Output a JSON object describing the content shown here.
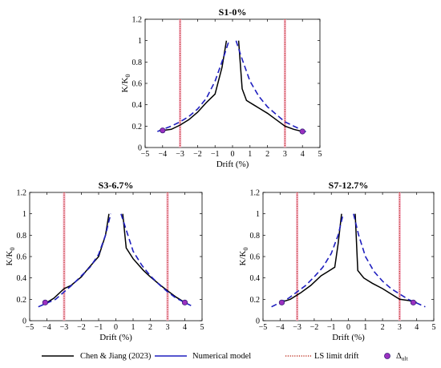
{
  "colors": {
    "experimental": "#000000",
    "numerical": "#1f1fbf",
    "ls_limit": "#c0392b",
    "ls_limit_halo": "#f4b6c8",
    "ultimate_fill": "#9b30c0"
  },
  "legend": {
    "items": [
      {
        "key": "experimental",
        "label": "Chen & Jiang (2023)"
      },
      {
        "key": "numerical",
        "label": "Numerical model"
      },
      {
        "key": "ls_limit",
        "label": "LS limit drift"
      },
      {
        "key": "ultimate",
        "label": "Δ",
        "sub": "ult"
      }
    ]
  },
  "chart_data": [
    {
      "type": "line",
      "title": "S1-0%",
      "xlabel": "Drift (%)",
      "ylabel": "K/K",
      "ylabel_sub": "0",
      "xlim": [
        -5,
        5
      ],
      "ylim": [
        0,
        1.2
      ],
      "xticks": [
        -5,
        -4,
        -3,
        -2,
        -1,
        0,
        1,
        2,
        3,
        4,
        5
      ],
      "yticks": [
        0,
        0.2,
        0.4,
        0.6,
        0.8,
        1,
        1.2
      ],
      "ls_limit_x": [
        -3,
        3
      ],
      "series": [
        {
          "name": "Chen & Jiang (2023)",
          "style": "solid",
          "x": [
            -4.0,
            -3.5,
            -3.0,
            -2.5,
            -2.0,
            -1.5,
            -1.0,
            -0.6,
            -0.35
          ],
          "y": [
            0.16,
            0.17,
            0.21,
            0.26,
            0.33,
            0.42,
            0.5,
            0.75,
            1.0
          ],
          "x2": [
            0.35,
            0.55,
            0.8,
            1.2,
            1.6,
            2.0,
            2.5,
            3.0,
            3.5,
            4.0
          ],
          "y2": [
            1.0,
            0.55,
            0.44,
            0.4,
            0.36,
            0.32,
            0.26,
            0.2,
            0.17,
            0.15
          ]
        },
        {
          "name": "Numerical model",
          "style": "dashed",
          "x": [
            -4.3,
            -3.5,
            -3.0,
            -2.5,
            -2.0,
            -1.5,
            -1.0,
            -0.5,
            -0.2
          ],
          "y": [
            0.15,
            0.2,
            0.24,
            0.29,
            0.36,
            0.46,
            0.62,
            0.85,
            1.0
          ],
          "x2": [
            0.2,
            0.5,
            1.0,
            1.5,
            2.0,
            2.5,
            3.0,
            3.5,
            4.3
          ],
          "y2": [
            1.0,
            0.85,
            0.62,
            0.48,
            0.38,
            0.31,
            0.24,
            0.2,
            0.14
          ]
        }
      ],
      "ultimate_points": [
        [
          -4.0,
          0.16
        ],
        [
          4.0,
          0.15
        ]
      ]
    },
    {
      "type": "line",
      "title": "S3-6.7%",
      "xlabel": "Drift (%)",
      "ylabel": "K/K",
      "ylabel_sub": "0",
      "xlim": [
        -5,
        5
      ],
      "ylim": [
        0,
        1.2
      ],
      "xticks": [
        -5,
        -4,
        -3,
        -2,
        -1,
        0,
        1,
        2,
        3,
        4,
        5
      ],
      "yticks": [
        0,
        0.2,
        0.4,
        0.6,
        0.8,
        1,
        1.2
      ],
      "ls_limit_x": [
        -3,
        3
      ],
      "series": [
        {
          "name": "Chen & Jiang (2023)",
          "style": "solid",
          "x": [
            -4.0,
            -3.6,
            -3.0,
            -2.6,
            -2.0,
            -1.6,
            -1.0,
            -0.6,
            -0.4
          ],
          "y": [
            0.17,
            0.21,
            0.3,
            0.33,
            0.41,
            0.49,
            0.6,
            0.8,
            1.0
          ],
          "x2": [
            0.4,
            0.6,
            1.0,
            1.6,
            2.0,
            2.6,
            3.0,
            3.5,
            4.0
          ],
          "y2": [
            1.0,
            0.68,
            0.58,
            0.47,
            0.41,
            0.33,
            0.28,
            0.22,
            0.17
          ]
        },
        {
          "name": "Numerical model",
          "style": "dashed",
          "x": [
            -4.5,
            -3.5,
            -3.0,
            -2.5,
            -2.0,
            -1.5,
            -1.0,
            -0.6,
            -0.3
          ],
          "y": [
            0.13,
            0.2,
            0.27,
            0.34,
            0.42,
            0.5,
            0.62,
            0.8,
            1.0
          ],
          "x2": [
            0.3,
            0.6,
            1.0,
            1.5,
            2.0,
            2.5,
            3.0,
            3.5,
            4.5
          ],
          "y2": [
            1.0,
            0.85,
            0.65,
            0.52,
            0.42,
            0.34,
            0.27,
            0.21,
            0.13
          ]
        }
      ],
      "ultimate_points": [
        [
          -4.1,
          0.17
        ],
        [
          4.0,
          0.17
        ]
      ]
    },
    {
      "type": "line",
      "title": "S7-12.7%",
      "xlabel": "Drift (%)",
      "ylabel": "K/K",
      "ylabel_sub": "0",
      "xlim": [
        -5,
        5
      ],
      "ylim": [
        0,
        1.2
      ],
      "xticks": [
        -5,
        -4,
        -3,
        -2,
        -1,
        0,
        1,
        2,
        3,
        4,
        5
      ],
      "yticks": [
        0,
        0.2,
        0.4,
        0.6,
        0.8,
        1,
        1.2
      ],
      "ls_limit_x": [
        -3,
        3
      ],
      "series": [
        {
          "name": "Chen & Jiang (2023)",
          "style": "solid",
          "x": [
            -4.0,
            -3.4,
            -2.8,
            -2.2,
            -1.6,
            -1.2,
            -0.8,
            -0.6,
            -0.4
          ],
          "y": [
            0.17,
            0.2,
            0.26,
            0.33,
            0.42,
            0.46,
            0.5,
            0.72,
            1.0
          ],
          "x2": [
            0.4,
            0.55,
            0.9,
            1.4,
            2.0,
            2.6,
            3.0,
            3.5,
            4.0
          ],
          "y2": [
            1.0,
            0.47,
            0.4,
            0.35,
            0.3,
            0.24,
            0.2,
            0.19,
            0.17
          ]
        },
        {
          "name": "Numerical model",
          "style": "dashed",
          "x": [
            -4.5,
            -3.5,
            -3.0,
            -2.5,
            -2.0,
            -1.5,
            -1.0,
            -0.6,
            -0.3
          ],
          "y": [
            0.13,
            0.21,
            0.27,
            0.33,
            0.41,
            0.5,
            0.63,
            0.8,
            1.0
          ],
          "x2": [
            0.3,
            0.6,
            1.0,
            1.5,
            2.0,
            2.5,
            3.0,
            3.5,
            4.5
          ],
          "y2": [
            1.0,
            0.8,
            0.6,
            0.46,
            0.37,
            0.3,
            0.25,
            0.2,
            0.13
          ]
        }
      ],
      "ultimate_points": [
        [
          -3.9,
          0.17
        ],
        [
          3.8,
          0.17
        ]
      ]
    }
  ]
}
